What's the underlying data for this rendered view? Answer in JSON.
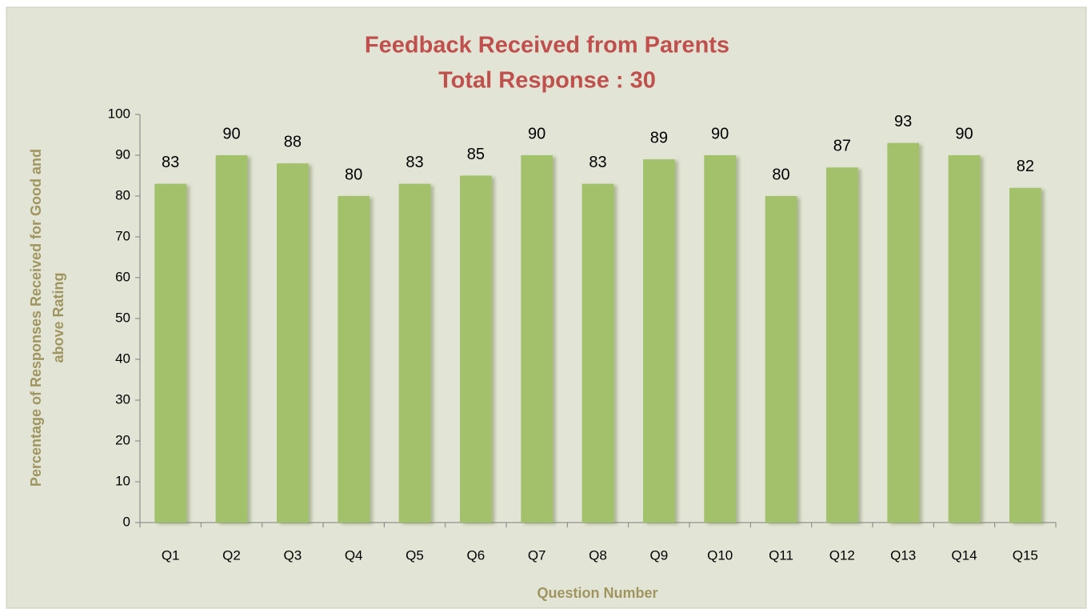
{
  "chart_data": {
    "type": "bar",
    "title": "Feedback Received from Parents",
    "subtitle": "Total Response : 30",
    "ylabel": [
      "Percentage of Responses Received  for Good and",
      "above  Rating"
    ],
    "xlabel": "Question Number",
    "categories": [
      "Q1",
      "Q2",
      "Q3",
      "Q4",
      "Q5",
      "Q6",
      "Q7",
      "Q8",
      "Q9",
      "Q10",
      "Q11",
      "Q12",
      "Q13",
      "Q14",
      "Q15"
    ],
    "values": [
      83,
      90,
      88,
      80,
      83,
      85,
      90,
      83,
      89,
      90,
      80,
      87,
      93,
      90,
      82
    ],
    "color": "#a3c16b",
    "ylim": [
      0,
      100
    ],
    "yticks": [
      0,
      10,
      20,
      30,
      40,
      50,
      60,
      70,
      80,
      90,
      100
    ],
    "grid": false
  }
}
